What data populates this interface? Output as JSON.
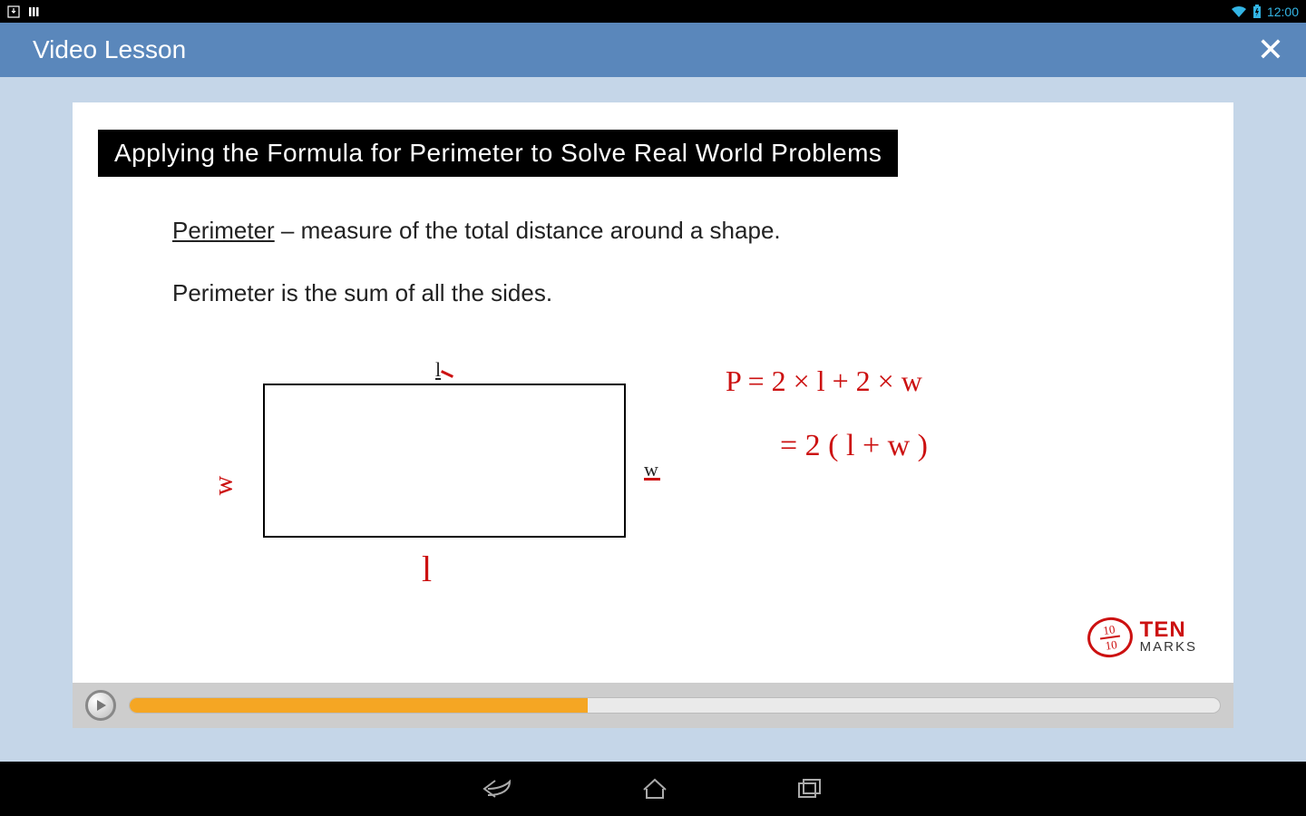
{
  "status": {
    "time": "12:00"
  },
  "header": {
    "title": "Video Lesson"
  },
  "slide": {
    "title": "Applying the Formula for Perimeter to Solve Real World Problems",
    "definition_term": "Perimeter",
    "definition_rest": "  – measure of the total distance around a shape.",
    "line2": "Perimeter is the sum of all the sides.",
    "labels": {
      "l_top": "l",
      "w_right": "w",
      "w_left": "w",
      "l_bottom": "l"
    },
    "formula": {
      "line1": "P = 2 × l  +  2 × w",
      "line2": "= 2 ( l + w )"
    }
  },
  "brand": {
    "ten": "TEN",
    "marks": "MARKS",
    "num": "10",
    "den": "10"
  },
  "video": {
    "progress_percent": 42,
    "progress_color": "#f5a623",
    "track_color": "#eaeaea"
  },
  "colors": {
    "header_bg": "#5a87bb",
    "wrap_bg": "#c5d6e8",
    "handwriting": "#c11"
  }
}
